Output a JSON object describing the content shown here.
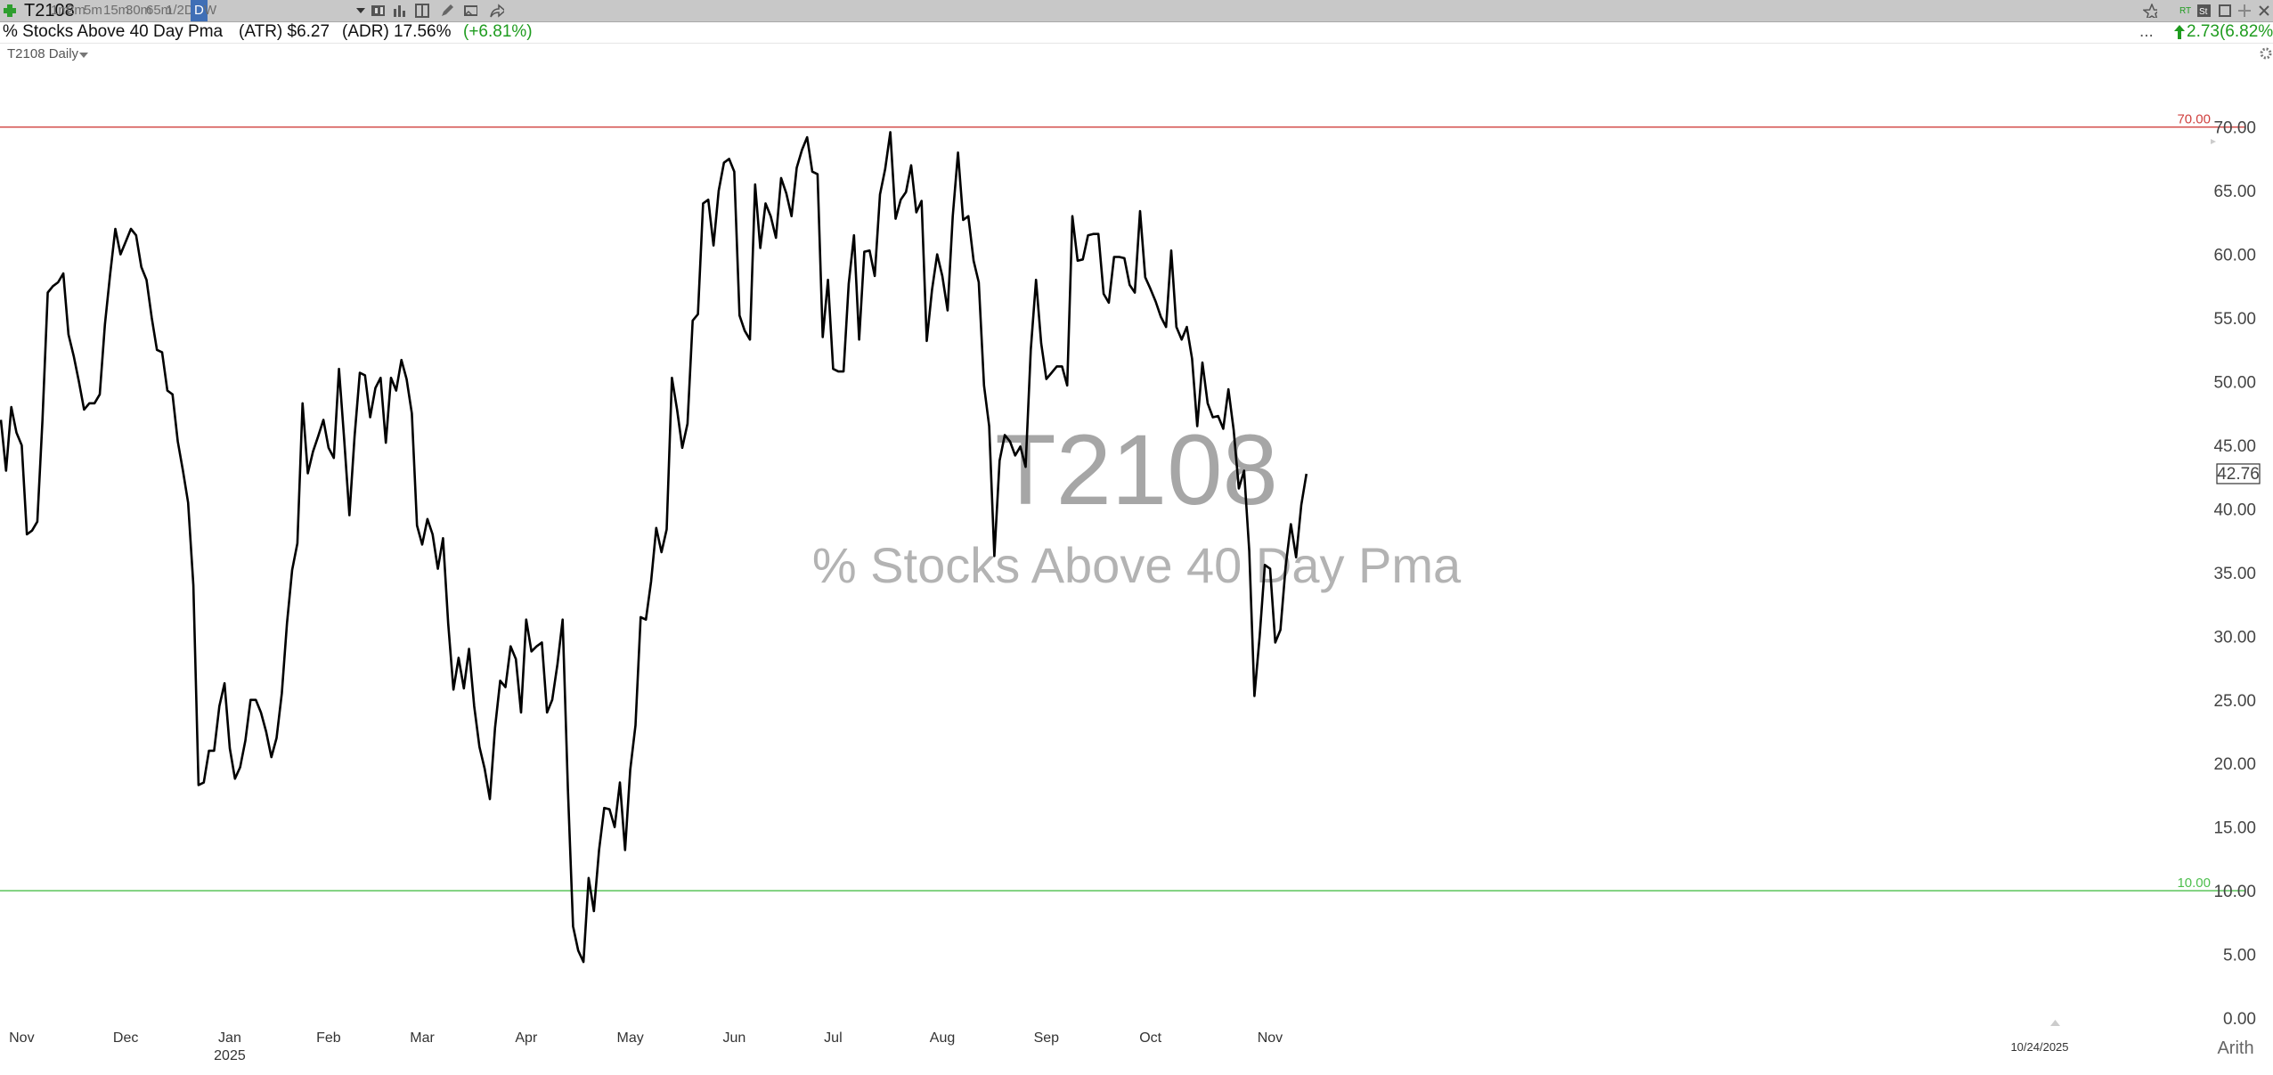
{
  "toolbar": {
    "symbol": "T2108",
    "timeframes": [
      "1m",
      "2m",
      "5m",
      "15m",
      "30m",
      "65m",
      "1/2D",
      "D",
      "W"
    ],
    "active_timeframe": "D"
  },
  "info": {
    "name": "% Stocks Above 40 Day Pma",
    "atr": "(ATR) $6.27",
    "adr": "(ADR) 17.56%",
    "change": "(+6.81%)",
    "right_change": "2.73(6.82%)",
    "ellipsis": "..."
  },
  "study_label": "T2108 Daily",
  "watermark": {
    "symbol": "T2108",
    "name": "% Stocks Above 40 Day Pma"
  },
  "current_value_label": "42.76",
  "scale_label": "Arith",
  "date_marker": "10/24/2025",
  "colors": {
    "line": "#000000",
    "upper_ref": "#d0413f",
    "lower_ref": "#4cbf4c",
    "accent": "#1f9c1f"
  },
  "chart_data": {
    "type": "line",
    "title": "% Stocks Above 40 Day Pma",
    "xlabel": "",
    "ylabel": "",
    "ylim": [
      0,
      72
    ],
    "yticks": [
      "0.00",
      "5.00",
      "10.00",
      "15.00",
      "20.00",
      "25.00",
      "30.00",
      "35.00",
      "40.00",
      "45.00",
      "50.00",
      "55.00",
      "60.00",
      "65.00",
      "70.00"
    ],
    "xticks": [
      {
        "label": "Nov",
        "index": 4
      },
      {
        "label": "Dec",
        "index": 24
      },
      {
        "label": "Jan",
        "index": 44,
        "sublabel": "2025"
      },
      {
        "label": "Feb",
        "index": 63
      },
      {
        "label": "Mar",
        "index": 81
      },
      {
        "label": "Apr",
        "index": 101
      },
      {
        "label": "May",
        "index": 121
      },
      {
        "label": "Jun",
        "index": 141
      },
      {
        "label": "Jul",
        "index": 160
      },
      {
        "label": "Aug",
        "index": 181
      },
      {
        "label": "Sep",
        "index": 201
      },
      {
        "label": "Oct",
        "index": 221
      },
      {
        "label": "Nov",
        "index": 244
      }
    ],
    "reference_lines": [
      {
        "label": "70.00",
        "value": 70
      },
      {
        "label": "10.00",
        "value": 10
      }
    ],
    "series": [
      {
        "values": [
          47,
          43,
          48,
          46,
          45,
          38,
          38.3,
          39,
          47,
          57,
          57.5,
          57.8,
          58.5,
          53.7,
          52,
          50,
          47.8,
          48.3,
          48.3,
          49,
          54.5,
          58.4,
          62,
          60,
          61,
          62,
          61.5,
          59,
          58,
          55,
          52.5,
          52.3,
          49.3,
          49,
          45.3,
          43,
          40.5,
          34,
          18.3,
          18.5,
          21,
          21,
          24.5,
          26.3,
          21.2,
          18.8,
          19.7,
          21.8,
          25,
          25,
          24,
          22.5,
          20.5,
          22,
          25.5,
          31,
          35.2,
          37.3,
          48.3,
          42.8,
          44.5,
          45.7,
          47,
          44.8,
          44,
          51,
          45.5,
          39.5,
          45.7,
          50.7,
          50.5,
          47.2,
          49.5,
          50.3,
          45.2,
          50.3,
          49.3,
          51.7,
          50.2,
          47.5,
          38.7,
          37.2,
          39.2,
          38,
          35.3,
          37.7,
          31,
          25.8,
          28.3,
          25.9,
          29,
          24.5,
          21.3,
          19.6,
          17.2,
          22.8,
          26.5,
          26,
          29.2,
          28.2,
          24,
          31.3,
          28.8,
          29.2,
          29.5,
          24,
          25,
          27.8,
          31.3,
          18,
          7.2,
          5.3,
          4.4,
          11,
          8.4,
          13.2,
          16.5,
          16.4,
          15,
          18.5,
          13.2,
          19.5,
          23,
          31.5,
          31.3,
          34.3,
          38.5,
          36.6,
          38.4,
          50.3,
          47.8,
          44.8,
          46.7,
          54.8,
          55.3,
          64,
          64.3,
          60.7,
          65,
          67.2,
          67.5,
          66.5,
          55.2,
          54,
          53.3,
          65.5,
          60.5,
          64,
          63,
          61.3,
          66,
          64.8,
          63,
          66.8,
          68.2,
          69.2,
          66.5,
          66.3,
          53.5,
          58,
          51,
          50.8,
          50.8,
          57.7,
          61.5,
          53.3,
          60.2,
          60.3,
          58.3,
          64.7,
          66.7,
          69.6,
          62.8,
          64.3,
          64.9,
          67,
          63.3,
          64.2,
          53.2,
          57.2,
          60,
          58.3,
          55.6,
          63,
          68,
          62.7,
          63,
          59.5,
          57.8,
          49.7,
          46.5,
          36.3,
          43.8,
          45.8,
          45.3,
          44.2,
          44.9,
          43.3,
          52.5,
          58,
          53,
          50.2,
          50.7,
          51.2,
          51.2,
          49.7,
          63,
          59.5,
          59.6,
          61.5,
          61.6,
          61.6,
          56.9,
          56.2,
          59.8,
          59.8,
          59.7,
          57.6,
          57,
          63.4,
          58.2,
          57.3,
          56.3,
          55.1,
          54.3,
          60.3,
          54.3,
          53.3,
          54.3,
          51.8,
          46.5,
          51.5,
          48.3,
          47.2,
          47.3,
          46.3,
          49.4,
          46.2,
          41.6,
          43,
          36.7,
          25.3,
          30,
          35.6,
          35.3,
          29.5,
          30.5,
          35.5,
          38.8,
          36.2,
          40.3,
          42.76
        ]
      }
    ]
  }
}
